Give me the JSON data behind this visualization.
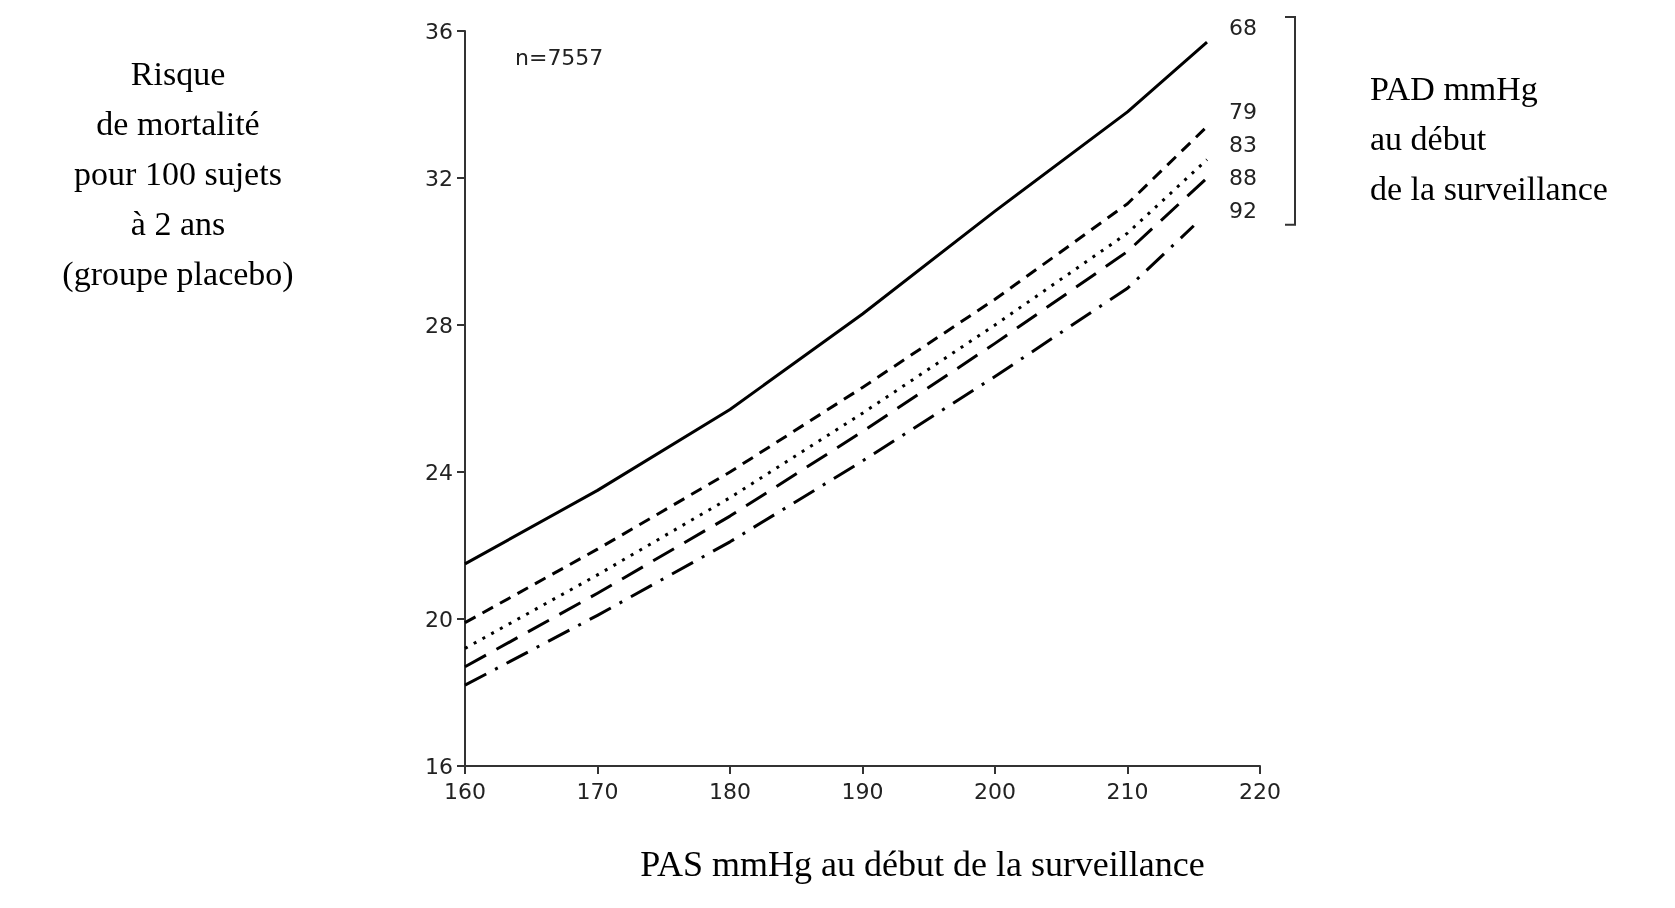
{
  "chart_data": {
    "type": "line",
    "xlabel": "PAS mmHg au début de la surveillance",
    "ylabel": "Risque\nde mortalité\npour 100 sujets\nà 2 ans\n(groupe placebo)",
    "legend_title": "PAD mmHg\nau début\nde la surveillance",
    "annotations": [
      "n=7557"
    ],
    "xlim": [
      160,
      220
    ],
    "xticks": [
      160,
      170,
      180,
      190,
      200,
      210,
      220
    ],
    "ylim": [
      16,
      36
    ],
    "yticks": [
      16,
      20,
      24,
      28,
      32,
      36
    ],
    "grid": false,
    "marker": "none",
    "x": [
      160,
      170,
      180,
      190,
      200,
      210,
      216
    ],
    "series": [
      {
        "name": "68",
        "color": "#000000",
        "line_style": "solid",
        "values": [
          21.5,
          23.5,
          25.7,
          28.3,
          31.1,
          33.8,
          35.7
        ]
      },
      {
        "name": "79",
        "color": "#000000",
        "line_style": "dashed",
        "values": [
          19.9,
          21.9,
          24.0,
          26.3,
          28.7,
          31.3,
          33.4
        ]
      },
      {
        "name": "83",
        "color": "#000000",
        "line_style": "dotted",
        "values": [
          19.2,
          21.2,
          23.3,
          25.6,
          28.0,
          30.5,
          32.5
        ]
      },
      {
        "name": "88",
        "color": "#000000",
        "line_style": "dashed",
        "values": [
          18.7,
          20.7,
          22.8,
          25.1,
          27.5,
          30.0,
          32.0
        ]
      },
      {
        "name": "92",
        "color": "#000000",
        "line_style": "dashed",
        "x": [
          160,
          170,
          180,
          190,
          200,
          210,
          215
        ],
        "values": [
          18.2,
          20.1,
          22.1,
          24.3,
          26.6,
          29.0,
          30.7
        ]
      }
    ]
  }
}
